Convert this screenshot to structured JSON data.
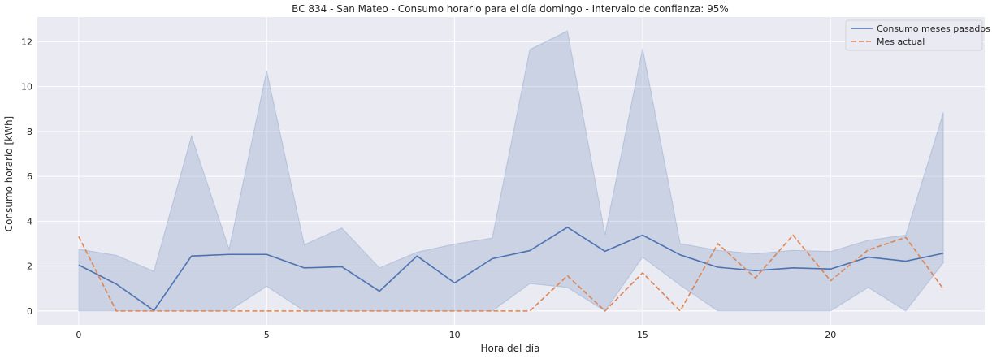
{
  "chart_data": {
    "type": "line",
    "title": "BC 834 - San Mateo - Consumo horario para el día domingo - Intervalo de confianza: 95%",
    "xlabel": "Hora del día",
    "ylabel": "Consumo horario [kWh]",
    "xlim": [
      -1.1,
      24.1
    ],
    "ylim": [
      -0.62,
      13.1
    ],
    "x_ticks": [
      0,
      5,
      10,
      15,
      20
    ],
    "y_ticks": [
      0,
      2,
      4,
      6,
      8,
      10,
      12
    ],
    "grid": true,
    "legend_position": "top-right",
    "x": [
      0,
      1,
      2,
      3,
      4,
      5,
      6,
      7,
      8,
      9,
      10,
      11,
      12,
      13,
      14,
      15,
      16,
      17,
      18,
      19,
      20,
      21,
      22,
      23
    ],
    "series": [
      {
        "name": "Consumo meses pasados",
        "style": "solid",
        "color": "#4c72b0",
        "values": [
          2.05,
          1.2,
          0.02,
          2.45,
          2.52,
          2.52,
          1.92,
          1.97,
          0.88,
          2.45,
          1.25,
          2.33,
          2.69,
          3.73,
          2.66,
          3.38,
          2.5,
          1.95,
          1.8,
          1.92,
          1.87,
          2.4,
          2.22,
          2.57
        ],
        "ci_upper": [
          2.75,
          2.48,
          1.77,
          7.8,
          2.75,
          10.7,
          2.95,
          3.7,
          1.92,
          2.62,
          2.98,
          3.25,
          11.65,
          12.48,
          3.4,
          11.7,
          3.0,
          2.7,
          2.55,
          2.7,
          2.65,
          3.15,
          3.38,
          8.85
        ],
        "ci_lower": [
          0.0,
          0.0,
          0.0,
          0.0,
          0.0,
          1.1,
          0.0,
          0.0,
          0.0,
          0.0,
          0.0,
          0.0,
          1.22,
          1.05,
          0.0,
          2.4,
          1.15,
          0.0,
          0.0,
          0.0,
          0.0,
          1.05,
          0.0,
          2.15
        ]
      },
      {
        "name": "Mes actual",
        "style": "dashed",
        "color": "#dd8452",
        "values": [
          3.32,
          0.0,
          0.0,
          0.0,
          0.0,
          0.0,
          0.0,
          0.0,
          0.0,
          0.0,
          0.0,
          0.0,
          0.0,
          1.57,
          0.0,
          1.7,
          0.0,
          3.0,
          1.47,
          3.38,
          1.35,
          2.72,
          3.28,
          0.98
        ]
      }
    ]
  },
  "colors": {
    "axes_bg": "#eaeaf2",
    "grid": "#ffffff",
    "ci_fill": "#4c72b0"
  }
}
